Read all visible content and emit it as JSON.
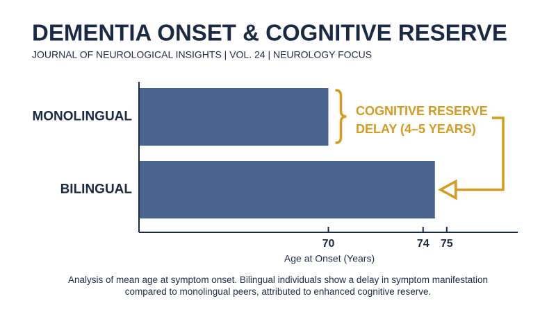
{
  "chart_data": {
    "type": "bar",
    "orientation": "horizontal",
    "title": "DEMENTIA ONSET & COGNITIVE RESERVE",
    "subtitle": "JOURNAL OF NEUROLOGICAL INSIGHTS  | VOL. 24  | NEUROLOGY FOCUS",
    "categories": [
      "MONOLINGUAL",
      "BILINGUAL"
    ],
    "values": [
      70,
      74.5
    ],
    "color": "#4a6490",
    "xlim": [
      62,
      78
    ],
    "xticks": [
      70,
      74,
      75
    ],
    "xlabel": "Age at Onset (Years)",
    "annotation": "COGNITIVE RESERVE DELAY (4–5 YEARS)",
    "annotation_color": "#d49a22",
    "caption": "Analysis of mean age at symptom onset. Bilingual individuals show a delay in symptom manifestation compared to monolingual peers, attributed to enhanced cognitive reserve."
  }
}
